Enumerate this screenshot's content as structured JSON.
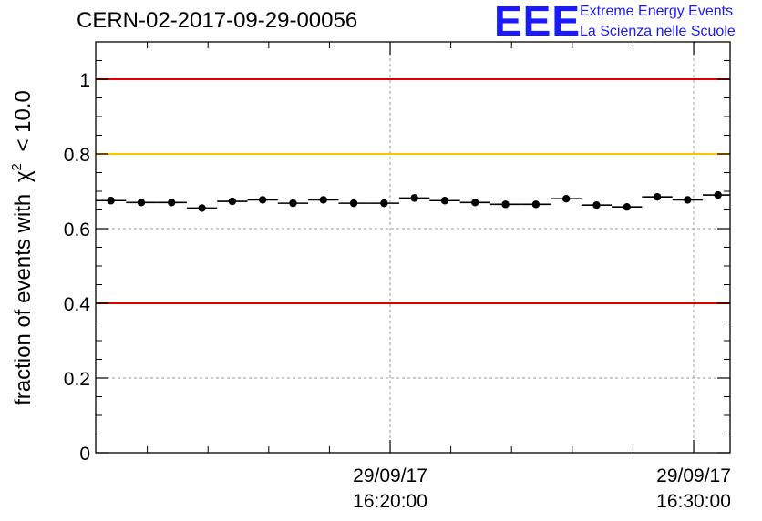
{
  "header": {
    "run_title": "CERN-02-2017-09-29-00056"
  },
  "logo": {
    "mark": "EEE",
    "line1": "Extreme Energy Events",
    "line2": "La Scienza nelle Scuole",
    "color": "#1a1aff"
  },
  "chart_data": {
    "type": "scatter",
    "title": "CERN-02-2017-09-29-00056",
    "ylabel_prefix": "fraction of events with",
    "ylabel_symbol": "χ",
    "ylabel_sup": "2",
    "ylabel_suffix": "< 10.0",
    "ylim": [
      0,
      1.1
    ],
    "yticks": [
      {
        "value": 0,
        "label": "0"
      },
      {
        "value": 0.2,
        "label": "0.2"
      },
      {
        "value": 0.4,
        "label": "0.4"
      },
      {
        "value": 0.6,
        "label": "0.6"
      },
      {
        "value": 0.8,
        "label": "0.8"
      },
      {
        "value": 1,
        "label": "1"
      }
    ],
    "xlim": [
      "2017-09-29 16:10:18",
      "2017-09-29 16:31:12"
    ],
    "xticks": [
      {
        "value": "2017-09-29 16:20:00",
        "label_date": "29/09/17",
        "label_time": "16:20:00"
      },
      {
        "value": "2017-09-29 16:30:00",
        "label_date": "29/09/17",
        "label_time": "16:30:00"
      }
    ],
    "grid": true,
    "reference_lines": [
      {
        "value": 1.0,
        "color": "#e00000"
      },
      {
        "value": 0.8,
        "color": "#ffc000"
      },
      {
        "value": 0.4,
        "color": "#e00000"
      }
    ],
    "series": [
      {
        "bin_width_seconds": 60,
        "x": [
          "2017-09-29 16:10:48",
          "2017-09-29 16:11:48",
          "2017-09-29 16:12:48",
          "2017-09-29 16:13:48",
          "2017-09-29 16:14:48",
          "2017-09-29 16:15:48",
          "2017-09-29 16:16:48",
          "2017-09-29 16:17:48",
          "2017-09-29 16:18:48",
          "2017-09-29 16:19:48",
          "2017-09-29 16:20:48",
          "2017-09-29 16:21:48",
          "2017-09-29 16:22:48",
          "2017-09-29 16:23:48",
          "2017-09-29 16:24:48",
          "2017-09-29 16:25:48",
          "2017-09-29 16:26:48",
          "2017-09-29 16:27:48",
          "2017-09-29 16:28:48",
          "2017-09-29 16:29:48",
          "2017-09-29 16:30:48"
        ],
        "values": [
          0.675,
          0.67,
          0.67,
          0.655,
          0.673,
          0.677,
          0.668,
          0.677,
          0.668,
          0.668,
          0.682,
          0.675,
          0.67,
          0.665,
          0.665,
          0.68,
          0.663,
          0.658,
          0.685,
          0.677,
          0.69
        ]
      }
    ]
  }
}
